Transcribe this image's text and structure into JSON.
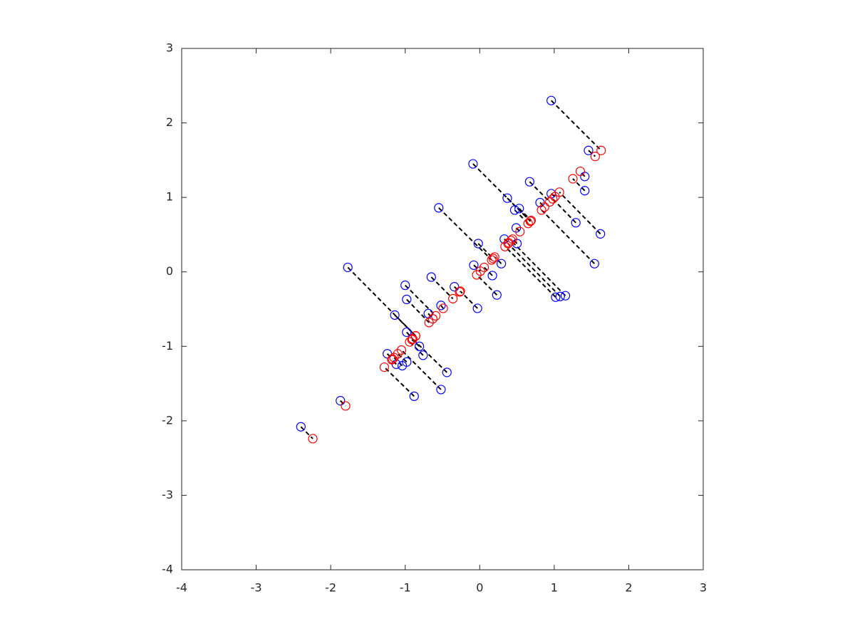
{
  "chart_data": {
    "type": "scatter",
    "series": [
      {
        "color": "#0000ff",
        "x": [
          0.96,
          1.46,
          -0.09,
          0.67,
          0.96,
          1.41,
          1.41,
          0.37,
          -0.55,
          0.47,
          0.53,
          0.81,
          1.29,
          1.62,
          0.49,
          -0.02,
          0.33,
          0.5,
          1.54,
          -0.08,
          0.29,
          -1.77,
          -0.65,
          0.17,
          -0.34,
          0.23,
          -1.0,
          1.02,
          1.08,
          1.15,
          -0.03,
          -0.98,
          -1.14,
          -0.69,
          -0.52,
          -0.98,
          -0.81,
          -0.76,
          -1.24,
          -1.12,
          -1.04,
          -0.98,
          -0.44,
          -0.52,
          -0.88,
          -1.87,
          -2.4
        ],
        "y": [
          2.3,
          1.63,
          1.45,
          1.21,
          1.05,
          1.28,
          1.09,
          0.99,
          0.86,
          0.83,
          0.85,
          0.93,
          0.66,
          0.51,
          0.59,
          0.38,
          0.44,
          0.38,
          0.11,
          0.09,
          0.11,
          0.06,
          -0.07,
          -0.05,
          -0.2,
          -0.31,
          -0.18,
          -0.34,
          -0.33,
          -0.32,
          -0.49,
          -0.37,
          -0.58,
          -0.56,
          -0.45,
          -0.81,
          -1.0,
          -1.12,
          -1.1,
          -1.24,
          -1.26,
          -1.21,
          -1.35,
          -1.58,
          -1.67,
          -1.73,
          -2.08
        ]
      },
      {
        "color": "#ff0000",
        "x": [
          1.63,
          1.55,
          0.68,
          0.94,
          1.01,
          1.35,
          1.25,
          0.68,
          0.16,
          0.65,
          0.69,
          0.87,
          0.98,
          1.07,
          0.54,
          0.18,
          0.39,
          0.44,
          0.83,
          0.01,
          0.2,
          -0.86,
          -0.36,
          0.06,
          -0.27,
          -0.04,
          -0.59,
          0.34,
          0.38,
          0.42,
          -0.26,
          -0.68,
          -0.86,
          -0.63,
          -0.49,
          -0.9,
          -0.91,
          -0.94,
          -1.17,
          -1.18,
          -1.15,
          -1.1,
          -0.9,
          -1.05,
          -1.28,
          -1.8,
          -2.24
        ],
        "y": [
          1.63,
          1.55,
          0.68,
          0.94,
          1.01,
          1.35,
          1.25,
          0.68,
          0.16,
          0.65,
          0.69,
          0.87,
          0.98,
          1.07,
          0.54,
          0.18,
          0.39,
          0.44,
          0.83,
          0.01,
          0.2,
          -0.86,
          -0.36,
          0.06,
          -0.27,
          -0.04,
          -0.59,
          0.34,
          0.38,
          0.42,
          -0.26,
          -0.68,
          -0.86,
          -0.63,
          -0.49,
          -0.9,
          -0.91,
          -0.94,
          -1.17,
          -1.18,
          -1.15,
          -1.1,
          -0.9,
          -1.05,
          -1.28,
          -1.8,
          -2.24
        ]
      }
    ],
    "connector_color": "#000000",
    "xlim": [
      -4,
      3
    ],
    "ylim": [
      -4,
      3
    ],
    "xticks": [
      -4,
      -3,
      -2,
      -1,
      0,
      1,
      2,
      3
    ],
    "yticks": [
      -4,
      -3,
      -2,
      -1,
      0,
      1,
      2,
      3
    ],
    "grid": false
  }
}
